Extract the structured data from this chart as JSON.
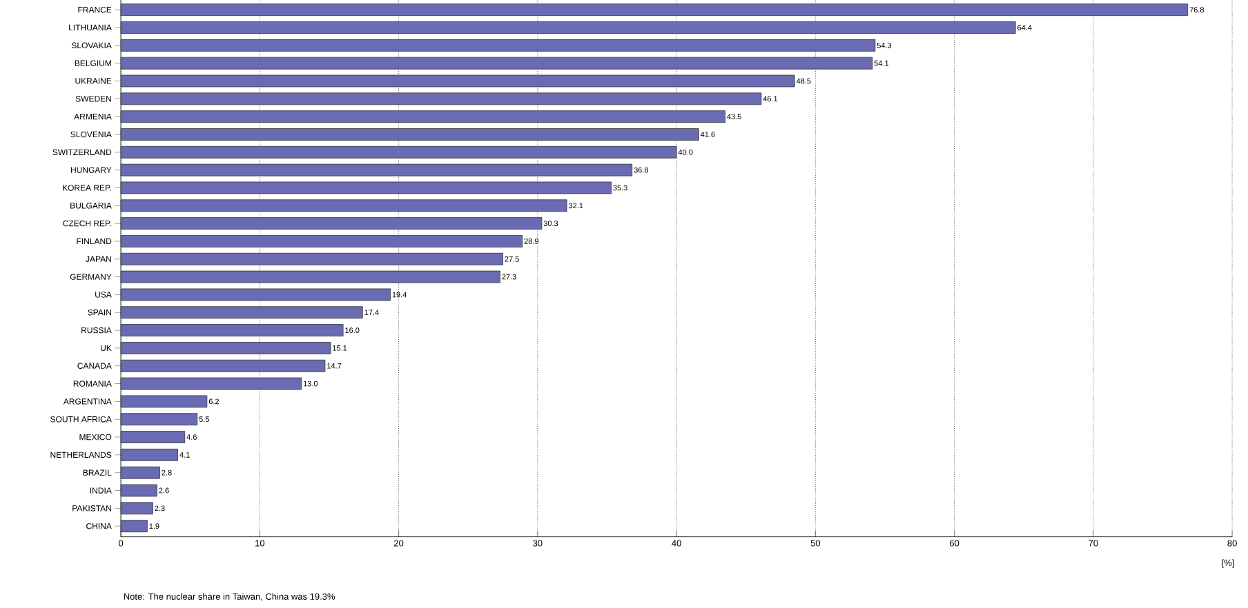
{
  "chart_data": {
    "type": "bar",
    "orientation": "horizontal",
    "xlabel": "[%]",
    "categories": [
      "FRANCE",
      "LITHUANIA",
      "SLOVAKIA",
      "BELGIUM",
      "UKRAINE",
      "SWEDEN",
      "ARMENIA",
      "SLOVENIA",
      "SWITZERLAND",
      "HUNGARY",
      "KOREA REP.",
      "BULGARIA",
      "CZECH REP.",
      "FINLAND",
      "JAPAN",
      "GERMANY",
      "USA",
      "SPAIN",
      "RUSSIA",
      "UK",
      "CANADA",
      "ROMANIA",
      "ARGENTINA",
      "SOUTH AFRICA",
      "MEXICO",
      "NETHERLANDS",
      "BRAZIL",
      "INDIA",
      "PAKISTAN",
      "CHINA"
    ],
    "values": [
      76.8,
      64.4,
      54.3,
      54.1,
      48.5,
      46.1,
      43.5,
      41.6,
      40.0,
      36.8,
      35.3,
      32.1,
      30.3,
      28.9,
      27.5,
      27.3,
      19.4,
      17.4,
      16.0,
      15.1,
      14.7,
      13.0,
      6.2,
      5.5,
      4.6,
      4.1,
      2.8,
      2.6,
      2.3,
      1.9
    ],
    "value_labels": [
      "76.8",
      "64.4",
      "54.3",
      "54.1",
      "48.5",
      "46.1",
      "43.5",
      "41.6",
      "40.0",
      "36.8",
      "35.3",
      "32.1",
      "30.3",
      "28.9",
      "27.5",
      "27.3",
      "19.4",
      "17.4",
      "16.0",
      "15.1",
      "14.7",
      "13.0",
      "6.2",
      "5.5",
      "4.6",
      "4.1",
      "2.8",
      "2.6",
      "2.3",
      "1.9"
    ],
    "color": "#6b6bb3",
    "xlim": [
      0,
      80
    ],
    "xticks": [
      0,
      10,
      20,
      30,
      40,
      50,
      60,
      70,
      80
    ],
    "grid": "x",
    "annotations": [
      "Note: The nuclear share in Taiwan, China was 19.3%"
    ]
  }
}
